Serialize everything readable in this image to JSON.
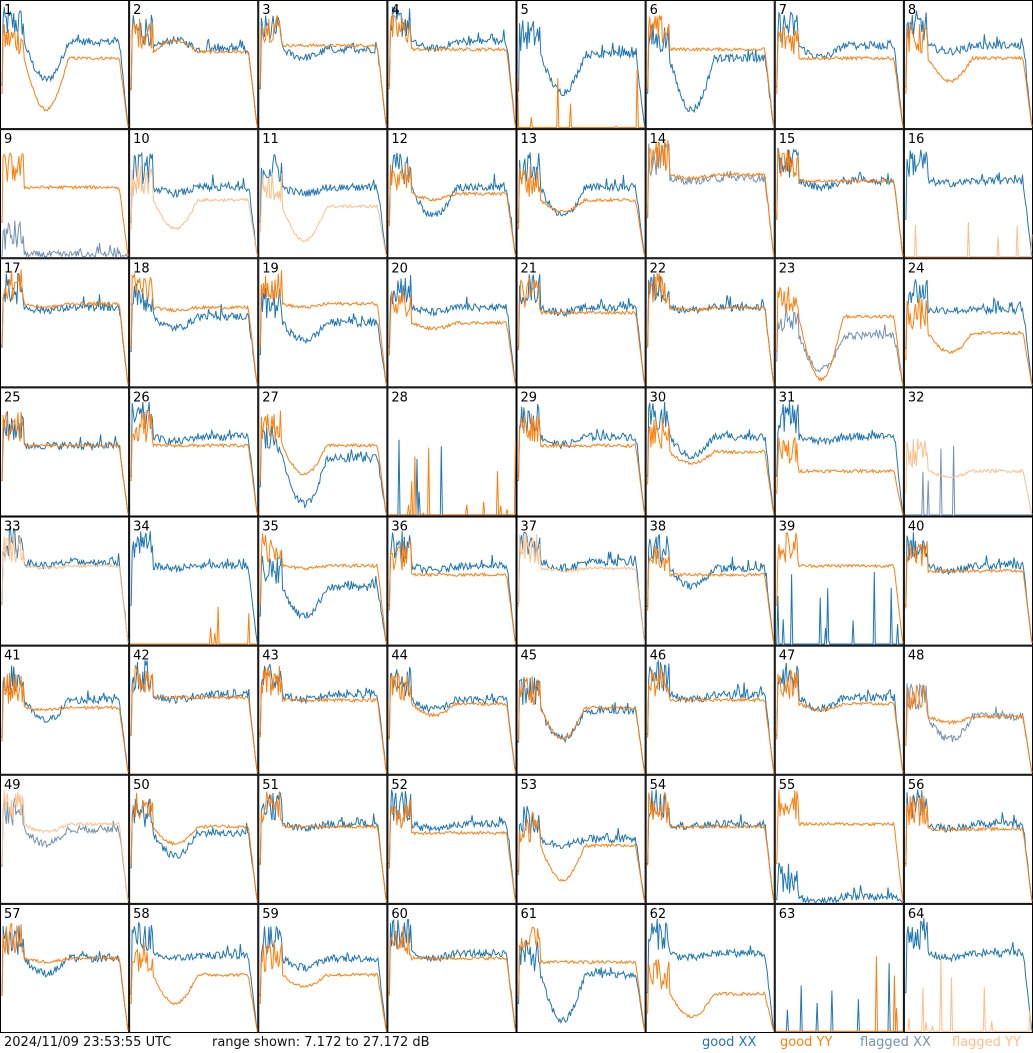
{
  "footer": {
    "timestamp": "2024/11/09 23:53:55 UTC",
    "range_text": "range shown: 7.172 to 27.172 dB"
  },
  "legend": [
    {
      "label": "good XX",
      "color": "#1f77b4"
    },
    {
      "label": "good YY",
      "color": "#ff7f0e"
    },
    {
      "label": "flagged XX",
      "color": "#7393b3"
    },
    {
      "label": "flagged YY",
      "color": "#ffbf8a"
    }
  ],
  "chart_data": {
    "type": "line",
    "grid": {
      "rows": 8,
      "cols": 8
    },
    "ylim": [
      7.172,
      27.172
    ],
    "panels": [
      {
        "id": "1",
        "xx": "good",
        "yy": "good",
        "xx_level": 0.68,
        "yy_level": 0.55,
        "xx_dip": 0.35,
        "yy_dip": 0.1
      },
      {
        "id": "2",
        "xx": "good",
        "yy": "good",
        "xx_level": 0.62,
        "yy_level": 0.6,
        "xx_dip": 0.7,
        "yy_dip": 0.7
      },
      {
        "id": "3",
        "xx": "good",
        "yy": "good",
        "xx_level": 0.62,
        "yy_level": 0.65,
        "xx_dip": 0.55,
        "yy_dip": 0.65
      },
      {
        "id": "4",
        "xx": "good",
        "yy": "good",
        "xx_level": 0.68,
        "yy_level": 0.62,
        "xx_dip": 0.62,
        "yy_dip": 0.62
      },
      {
        "id": "5",
        "xx": "good",
        "yy": "good",
        "xx_level": 0.58,
        "yy_level": 0.0,
        "xx_dip": 0.25,
        "yy_dip": 0.0
      },
      {
        "id": "6",
        "xx": "good",
        "yy": "good",
        "xx_level": 0.55,
        "yy_level": 0.62,
        "xx_dip": 0.1,
        "yy_dip": 0.62
      },
      {
        "id": "7",
        "xx": "good",
        "yy": "good",
        "xx_level": 0.65,
        "yy_level": 0.55,
        "xx_dip": 0.55,
        "yy_dip": 0.55
      },
      {
        "id": "8",
        "xx": "good",
        "yy": "good",
        "xx_level": 0.65,
        "yy_level": 0.55,
        "xx_dip": 0.6,
        "yy_dip": 0.35
      },
      {
        "id": "9",
        "xx": "flagged",
        "yy": "good",
        "xx_level": 0.02,
        "yy_level": 0.55,
        "xx_dip": 0.02,
        "yy_dip": 0.55
      },
      {
        "id": "10",
        "xx": "good",
        "yy": "flagged",
        "xx_level": 0.55,
        "yy_level": 0.45,
        "xx_dip": 0.5,
        "yy_dip": 0.2
      },
      {
        "id": "11",
        "xx": "good",
        "yy": "flagged",
        "xx_level": 0.55,
        "yy_level": 0.4,
        "xx_dip": 0.5,
        "yy_dip": 0.1
      },
      {
        "id": "12",
        "xx": "good",
        "yy": "good",
        "xx_level": 0.55,
        "yy_level": 0.5,
        "xx_dip": 0.3,
        "yy_dip": 0.45
      },
      {
        "id": "13",
        "xx": "good",
        "yy": "good",
        "xx_level": 0.55,
        "yy_level": 0.45,
        "xx_dip": 0.3,
        "yy_dip": 0.35
      },
      {
        "id": "14",
        "xx": "flagged",
        "yy": "good",
        "xx_level": 0.62,
        "yy_level": 0.65,
        "xx_dip": 0.6,
        "yy_dip": 0.62
      },
      {
        "id": "15",
        "xx": "good",
        "yy": "good",
        "xx_level": 0.6,
        "yy_level": 0.6,
        "xx_dip": 0.55,
        "yy_dip": 0.6
      },
      {
        "id": "16",
        "xx": "good",
        "yy": "flagged",
        "xx_level": 0.6,
        "yy_level": 0.0,
        "xx_dip": 0.58,
        "yy_dip": 0.0
      },
      {
        "id": "17",
        "xx": "good",
        "yy": "good",
        "xx_level": 0.62,
        "yy_level": 0.65,
        "xx_dip": 0.6,
        "yy_dip": 0.62
      },
      {
        "id": "18",
        "xx": "good",
        "yy": "good",
        "xx_level": 0.55,
        "yy_level": 0.62,
        "xx_dip": 0.45,
        "yy_dip": 0.6
      },
      {
        "id": "19",
        "xx": "good",
        "yy": "good",
        "xx_level": 0.5,
        "yy_level": 0.65,
        "xx_dip": 0.35,
        "yy_dip": 0.62
      },
      {
        "id": "20",
        "xx": "good",
        "yy": "good",
        "xx_level": 0.62,
        "yy_level": 0.5,
        "xx_dip": 0.58,
        "yy_dip": 0.45
      },
      {
        "id": "21",
        "xx": "good",
        "yy": "good",
        "xx_level": 0.62,
        "yy_level": 0.58,
        "xx_dip": 0.58,
        "yy_dip": 0.58
      },
      {
        "id": "22",
        "xx": "good",
        "yy": "good",
        "xx_level": 0.62,
        "yy_level": 0.62,
        "xx_dip": 0.6,
        "yy_dip": 0.6
      },
      {
        "id": "23",
        "xx": "flagged",
        "yy": "good",
        "xx_level": 0.4,
        "yy_level": 0.55,
        "xx_dip": 0.1,
        "yy_dip": 0.0
      },
      {
        "id": "24",
        "xx": "good",
        "yy": "good",
        "xx_level": 0.6,
        "yy_level": 0.42,
        "xx_dip": 0.6,
        "yy_dip": 0.25
      },
      {
        "id": "25",
        "xx": "good",
        "yy": "good",
        "xx_level": 0.55,
        "yy_level": 0.55,
        "xx_dip": 0.55,
        "yy_dip": 0.55
      },
      {
        "id": "26",
        "xx": "good",
        "yy": "good",
        "xx_level": 0.62,
        "yy_level": 0.55,
        "xx_dip": 0.58,
        "yy_dip": 0.55
      },
      {
        "id": "27",
        "xx": "good",
        "yy": "good",
        "xx_level": 0.45,
        "yy_level": 0.55,
        "xx_dip": 0.05,
        "yy_dip": 0.3
      },
      {
        "id": "28",
        "xx": "good",
        "yy": "good",
        "xx_level": 0.0,
        "yy_level": 0.0,
        "xx_dip": 0.0,
        "yy_dip": 0.0
      },
      {
        "id": "29",
        "xx": "good",
        "yy": "good",
        "xx_level": 0.62,
        "yy_level": 0.55,
        "xx_dip": 0.55,
        "yy_dip": 0.55
      },
      {
        "id": "30",
        "xx": "good",
        "yy": "good",
        "xx_level": 0.62,
        "yy_level": 0.5,
        "xx_dip": 0.45,
        "yy_dip": 0.4
      },
      {
        "id": "31",
        "xx": "good",
        "yy": "good",
        "xx_level": 0.62,
        "yy_level": 0.35,
        "xx_dip": 0.58,
        "yy_dip": 0.35
      },
      {
        "id": "32",
        "xx": "flagged",
        "yy": "flagged",
        "xx_level": 0.0,
        "yy_level": 0.35,
        "xx_dip": 0.0,
        "yy_dip": 0.3
      },
      {
        "id": "33",
        "xx": "good",
        "yy": "flagged",
        "xx_level": 0.65,
        "yy_level": 0.62,
        "xx_dip": 0.62,
        "yy_dip": 0.6
      },
      {
        "id": "34",
        "xx": "good",
        "yy": "good",
        "xx_level": 0.62,
        "yy_level": 0.0,
        "xx_dip": 0.6,
        "yy_dip": 0.0
      },
      {
        "id": "35",
        "xx": "good",
        "yy": "good",
        "xx_level": 0.45,
        "yy_level": 0.62,
        "xx_dip": 0.2,
        "yy_dip": 0.6
      },
      {
        "id": "36",
        "xx": "good",
        "yy": "good",
        "xx_level": 0.62,
        "yy_level": 0.55,
        "xx_dip": 0.58,
        "yy_dip": 0.55
      },
      {
        "id": "37",
        "xx": "good",
        "yy": "flagged",
        "xx_level": 0.65,
        "yy_level": 0.6,
        "xx_dip": 0.6,
        "yy_dip": 0.58
      },
      {
        "id": "38",
        "xx": "good",
        "yy": "good",
        "xx_level": 0.6,
        "yy_level": 0.55,
        "xx_dip": 0.45,
        "yy_dip": 0.55
      },
      {
        "id": "39",
        "xx": "good",
        "yy": "good",
        "xx_level": 0.0,
        "yy_level": 0.62,
        "xx_dip": 0.0,
        "yy_dip": 0.62
      },
      {
        "id": "40",
        "xx": "good",
        "yy": "good",
        "xx_level": 0.62,
        "yy_level": 0.58,
        "xx_dip": 0.58,
        "yy_dip": 0.58
      },
      {
        "id": "41",
        "xx": "good",
        "yy": "good",
        "xx_level": 0.58,
        "yy_level": 0.52,
        "xx_dip": 0.4,
        "yy_dip": 0.5
      },
      {
        "id": "42",
        "xx": "good",
        "yy": "good",
        "xx_level": 0.62,
        "yy_level": 0.6,
        "xx_dip": 0.58,
        "yy_dip": 0.6
      },
      {
        "id": "43",
        "xx": "good",
        "yy": "good",
        "xx_level": 0.62,
        "yy_level": 0.58,
        "xx_dip": 0.58,
        "yy_dip": 0.58
      },
      {
        "id": "44",
        "xx": "good",
        "yy": "good",
        "xx_level": 0.58,
        "yy_level": 0.55,
        "xx_dip": 0.5,
        "yy_dip": 0.45
      },
      {
        "id": "45",
        "xx": "good",
        "yy": "good",
        "xx_level": 0.5,
        "yy_level": 0.52,
        "xx_dip": 0.25,
        "yy_dip": 0.25
      },
      {
        "id": "46",
        "xx": "good",
        "yy": "good",
        "xx_level": 0.62,
        "yy_level": 0.58,
        "xx_dip": 0.58,
        "yy_dip": 0.58
      },
      {
        "id": "47",
        "xx": "good",
        "yy": "good",
        "xx_level": 0.6,
        "yy_level": 0.55,
        "xx_dip": 0.5,
        "yy_dip": 0.5
      },
      {
        "id": "48",
        "xx": "flagged",
        "yy": "good",
        "xx_level": 0.45,
        "yy_level": 0.45,
        "xx_dip": 0.25,
        "yy_dip": 0.4
      },
      {
        "id": "49",
        "xx": "flagged",
        "yy": "flagged",
        "xx_level": 0.58,
        "yy_level": 0.62,
        "xx_dip": 0.45,
        "yy_dip": 0.55
      },
      {
        "id": "50",
        "xx": "good",
        "yy": "good",
        "xx_level": 0.55,
        "yy_level": 0.6,
        "xx_dip": 0.35,
        "yy_dip": 0.45
      },
      {
        "id": "51",
        "xx": "good",
        "yy": "good",
        "xx_level": 0.62,
        "yy_level": 0.6,
        "xx_dip": 0.58,
        "yy_dip": 0.6
      },
      {
        "id": "52",
        "xx": "good",
        "yy": "good",
        "xx_level": 0.62,
        "yy_level": 0.55,
        "xx_dip": 0.58,
        "yy_dip": 0.55
      },
      {
        "id": "53",
        "xx": "good",
        "yy": "good",
        "xx_level": 0.5,
        "yy_level": 0.45,
        "xx_dip": 0.45,
        "yy_dip": 0.15
      },
      {
        "id": "54",
        "xx": "good",
        "yy": "good",
        "xx_level": 0.62,
        "yy_level": 0.6,
        "xx_dip": 0.6,
        "yy_dip": 0.6
      },
      {
        "id": "55",
        "xx": "good",
        "yy": "good",
        "xx_level": 0.05,
        "yy_level": 0.62,
        "xx_dip": 0.0,
        "yy_dip": 0.62
      },
      {
        "id": "56",
        "xx": "good",
        "yy": "good",
        "xx_level": 0.62,
        "yy_level": 0.58,
        "xx_dip": 0.58,
        "yy_dip": 0.58
      },
      {
        "id": "57",
        "xx": "good",
        "yy": "good",
        "xx_level": 0.58,
        "yy_level": 0.58,
        "xx_dip": 0.45,
        "yy_dip": 0.55
      },
      {
        "id": "58",
        "xx": "good",
        "yy": "good",
        "xx_level": 0.6,
        "yy_level": 0.45,
        "xx_dip": 0.58,
        "yy_dip": 0.2
      },
      {
        "id": "59",
        "xx": "good",
        "yy": "good",
        "xx_level": 0.58,
        "yy_level": 0.45,
        "xx_dip": 0.5,
        "yy_dip": 0.35
      },
      {
        "id": "60",
        "xx": "good",
        "yy": "good",
        "xx_level": 0.62,
        "yy_level": 0.58,
        "xx_dip": 0.58,
        "yy_dip": 0.58
      },
      {
        "id": "61",
        "xx": "good",
        "yy": "good",
        "xx_level": 0.45,
        "yy_level": 0.55,
        "xx_dip": 0.05,
        "yy_dip": 0.55
      },
      {
        "id": "62",
        "xx": "good",
        "yy": "good",
        "xx_level": 0.62,
        "yy_level": 0.3,
        "xx_dip": 0.58,
        "yy_dip": 0.1
      },
      {
        "id": "63",
        "xx": "good",
        "yy": "good",
        "xx_level": 0.0,
        "yy_level": 0.0,
        "xx_dip": 0.0,
        "yy_dip": 0.0
      },
      {
        "id": "64",
        "xx": "good",
        "yy": "flagged",
        "xx_level": 0.62,
        "yy_level": 0.0,
        "xx_dip": 0.58,
        "yy_dip": 0.0
      }
    ]
  }
}
